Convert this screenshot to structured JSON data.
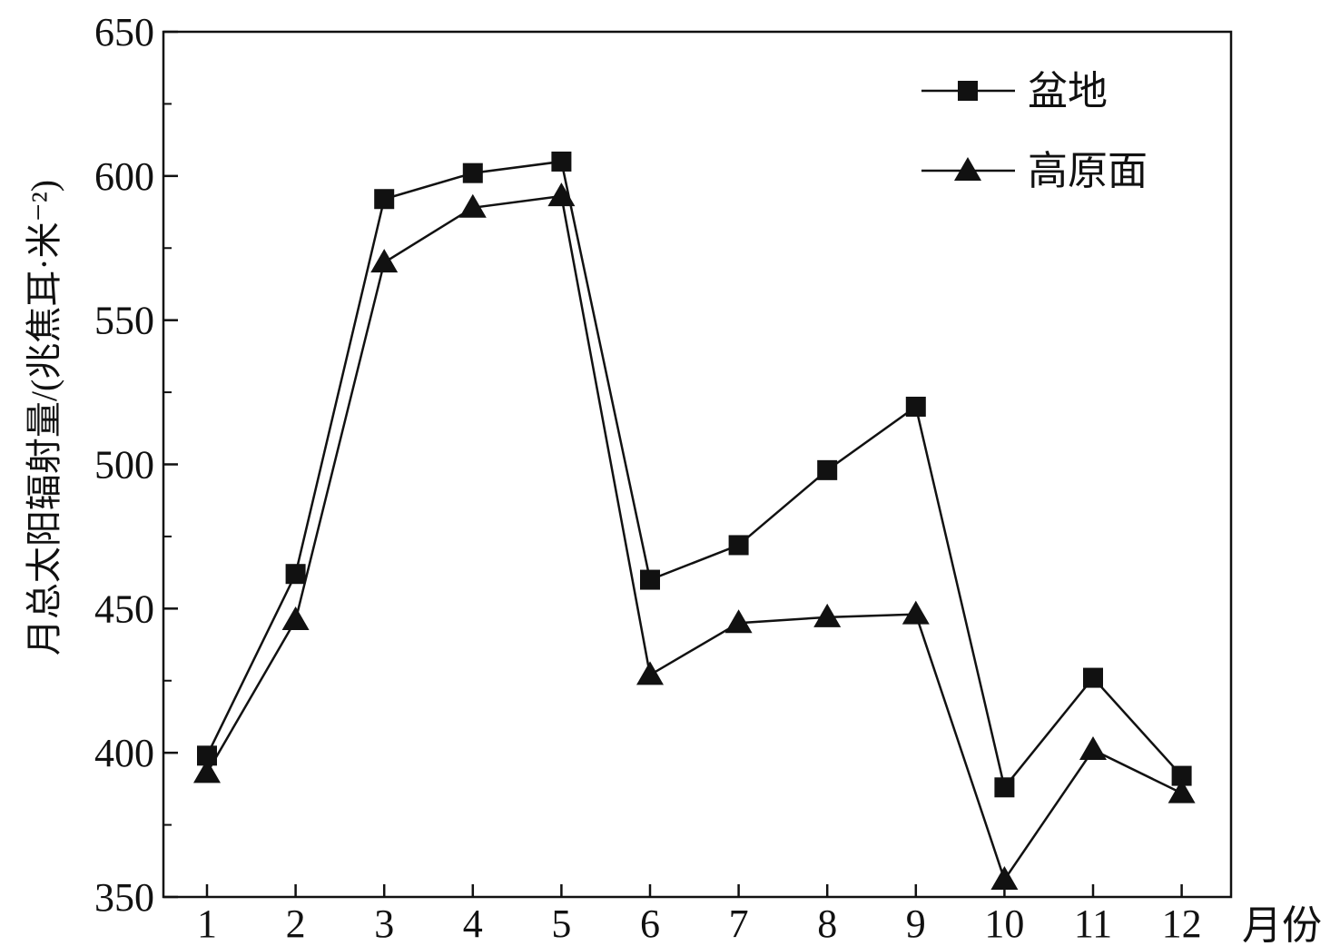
{
  "chart_data": {
    "type": "line",
    "title": "",
    "x": [
      1,
      2,
      3,
      4,
      5,
      6,
      7,
      8,
      9,
      10,
      11,
      12
    ],
    "x_tick_labels": [
      "1",
      "2",
      "3",
      "4",
      "5",
      "6",
      "7",
      "8",
      "9",
      "10",
      "11",
      "12"
    ],
    "xlabel": "月份",
    "ylabel": "月总太阳辐射量/(兆焦耳·米⁻²)",
    "ylim": [
      350,
      650
    ],
    "y_ticks": [
      350,
      400,
      450,
      500,
      550,
      600,
      650
    ],
    "grid": false,
    "legend_position": "top-right",
    "series": [
      {
        "name": "盆地",
        "marker": "square",
        "color": "#111111",
        "values": [
          399,
          462,
          592,
          601,
          605,
          460,
          472,
          498,
          520,
          388,
          426,
          392
        ]
      },
      {
        "name": "高原面",
        "marker": "triangle",
        "color": "#111111",
        "values": [
          393,
          446,
          570,
          589,
          593,
          427,
          445,
          447,
          448,
          356,
          401,
          386
        ]
      }
    ]
  }
}
